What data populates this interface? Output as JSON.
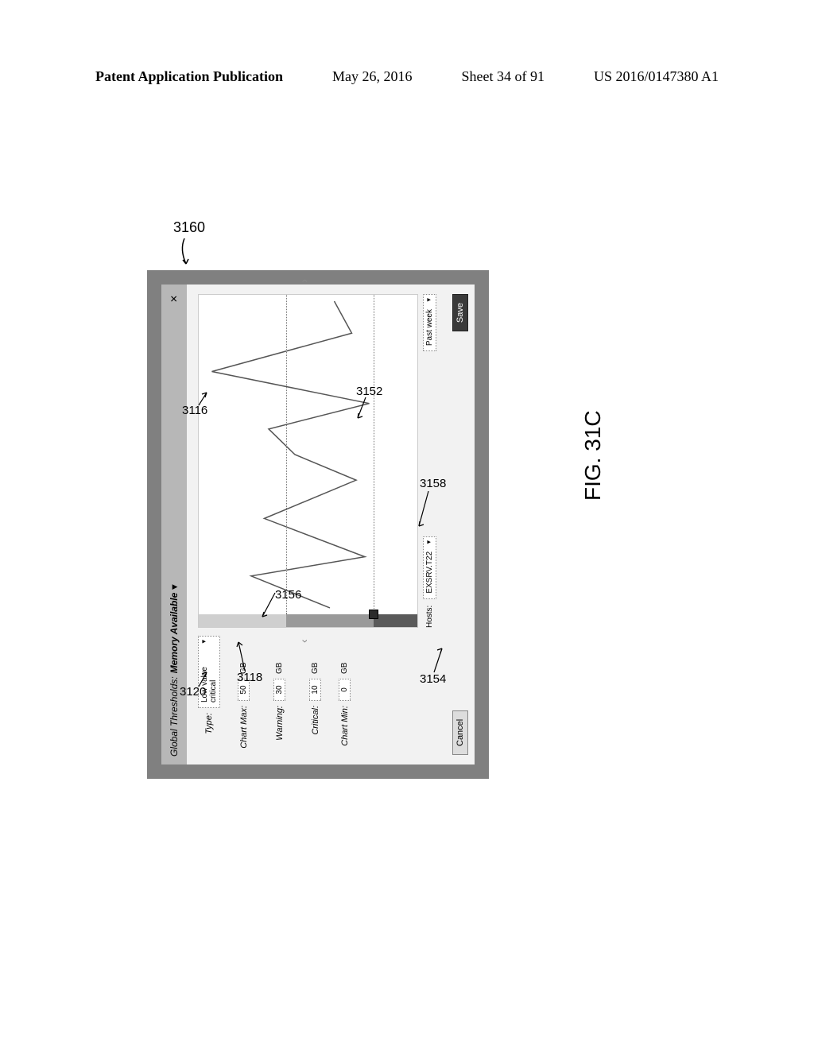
{
  "header": {
    "left": "Patent Application Publication",
    "date": "May 26, 2016",
    "sheet": "Sheet 34 of 91",
    "pub": "US 2016/0147380 A1"
  },
  "figure_label": "FIG. 31C",
  "refs": {
    "r3160": "3160",
    "r3116": "3116",
    "r3120": "3120",
    "r3118": "3118",
    "r3156": "3156",
    "r3152": "3152",
    "r3158": "3158",
    "r3154": "3154"
  },
  "panel": {
    "title_main": "Global Thresholds:",
    "title_metric": "Memory Available",
    "close_glyph": "✕",
    "type_label": "Type:",
    "type_value": "Low value critical",
    "rows": {
      "chart_max": {
        "label": "Chart Max:",
        "value": "50",
        "unit": "GB"
      },
      "warning": {
        "label": "Warning:",
        "value": "30",
        "unit": "GB"
      },
      "critical": {
        "label": "Critical:",
        "value": "10",
        "unit": "GB"
      },
      "chart_min": {
        "label": "Chart Min:",
        "value": "0",
        "unit": "GB"
      }
    },
    "hosts_label": "Hosts:",
    "hosts_value": "EXSRV.T22",
    "range_value": "Past week",
    "cancel": "Cancel",
    "save": "Save"
  },
  "chart": {
    "type": "line",
    "ylim": [
      0,
      50
    ],
    "warning_at": 30,
    "critical_at": 10,
    "marker_at": 10,
    "gauge_colors": {
      "ok": "#cfcfcf",
      "warn": "#9a9a9a",
      "crit": "#5a5a5a",
      "below": "#efefef"
    },
    "line_color": "#555555",
    "line_width": 1.5,
    "threshold_line_color": "#777777",
    "background": "#ffffff",
    "points": [
      {
        "x": 0.02,
        "y": 20
      },
      {
        "x": 0.12,
        "y": 38
      },
      {
        "x": 0.18,
        "y": 12
      },
      {
        "x": 0.3,
        "y": 35
      },
      {
        "x": 0.42,
        "y": 14
      },
      {
        "x": 0.5,
        "y": 28
      },
      {
        "x": 0.58,
        "y": 34
      },
      {
        "x": 0.66,
        "y": 11
      },
      {
        "x": 0.76,
        "y": 47
      },
      {
        "x": 0.88,
        "y": 15
      },
      {
        "x": 0.98,
        "y": 19
      }
    ]
  },
  "colors": {
    "panel_border": "#808080",
    "panel_bg": "#f2f2f2",
    "titlebar_bg": "#b7b7b7"
  }
}
